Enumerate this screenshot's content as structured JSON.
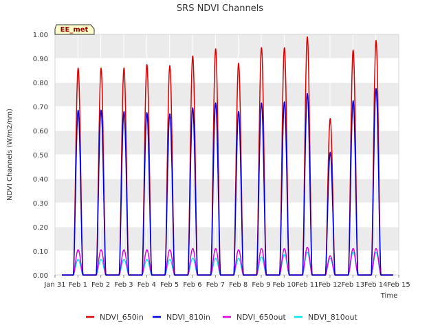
{
  "chart_data": {
    "type": "line",
    "title": "SRS NDVI Channels",
    "badge": "EE_met",
    "xlabel": "Time",
    "ylabel": "NDVI Channels (W/m2/nm)",
    "ylim": [
      0.0,
      1.0
    ],
    "xlim": [
      0,
      15
    ],
    "x_tick_labels": [
      "Jan 31",
      "Feb 1",
      "Feb 2",
      "Feb 3",
      "Feb 4",
      "Feb 5",
      "Feb 6",
      "Feb 7",
      "Feb 8",
      "Feb 9",
      "Feb 10",
      "Feb 11",
      "Feb 12",
      "Feb 13",
      "Feb 14",
      "Feb 15"
    ],
    "y_tick_labels": [
      "0.00",
      "0.10",
      "0.20",
      "0.30",
      "0.40",
      "0.50",
      "0.60",
      "0.70",
      "0.80",
      "0.90",
      "1.00"
    ],
    "grid": true,
    "legend_position": "bottom",
    "daylight_window": {
      "start": 0.3,
      "end": 0.72
    },
    "series": [
      {
        "name": "NDVI_650in",
        "color": "#dd0000",
        "daily_peak": [
          0.86,
          0.86,
          0.86,
          0.875,
          0.87,
          0.91,
          0.94,
          0.88,
          0.945,
          0.945,
          0.99,
          0.65,
          0.935,
          0.975
        ]
      },
      {
        "name": "NDVI_810in",
        "color": "#0000dd",
        "daily_peak": [
          0.685,
          0.685,
          0.68,
          0.675,
          0.67,
          0.695,
          0.715,
          0.68,
          0.715,
          0.72,
          0.755,
          0.51,
          0.725,
          0.775
        ]
      },
      {
        "name": "NDVI_650out",
        "color": "#dd00dd",
        "daily_peak": [
          0.105,
          0.105,
          0.105,
          0.105,
          0.105,
          0.11,
          0.11,
          0.105,
          0.11,
          0.11,
          0.115,
          0.08,
          0.11,
          0.11
        ]
      },
      {
        "name": "NDVI_810out",
        "color": "#00e5ee",
        "daily_peak": [
          0.065,
          0.065,
          0.065,
          0.065,
          0.065,
          0.07,
          0.07,
          0.07,
          0.075,
          0.085,
          0.095,
          0.07,
          0.095,
          0.095
        ]
      }
    ]
  }
}
